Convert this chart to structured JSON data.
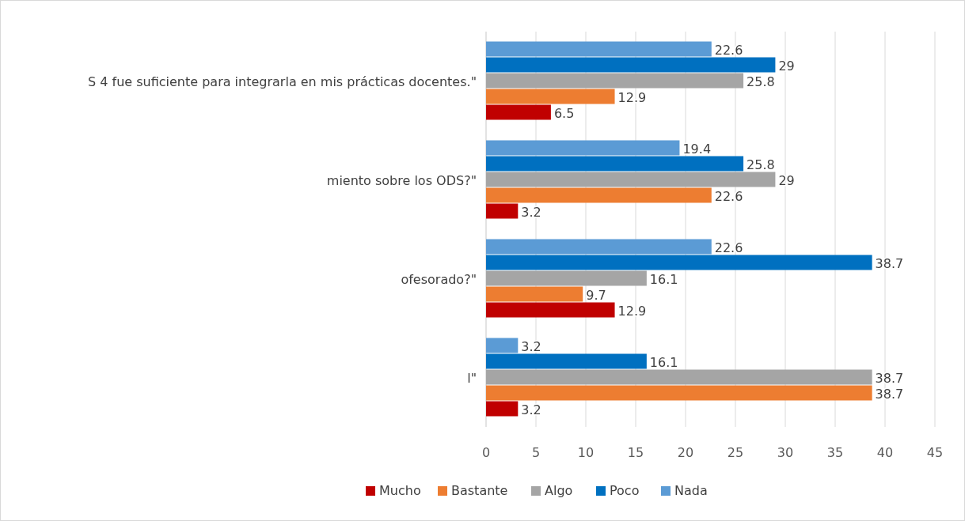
{
  "chart_data": {
    "type": "bar",
    "orientation": "horizontal",
    "categories": [
      "S 4 fue suficiente para integrarla en mis prácticas docentes.\"",
      "miento sobre los ODS?\"",
      "ofesorado?\"",
      "l\""
    ],
    "series": [
      {
        "name": "Mucho",
        "color": "#c00000",
        "values": [
          6.5,
          3.2,
          12.9,
          3.2
        ]
      },
      {
        "name": "Bastante",
        "color": "#ed7d31",
        "values": [
          12.9,
          22.6,
          9.7,
          38.7
        ]
      },
      {
        "name": "Algo",
        "color": "#a5a5a5",
        "values": [
          25.8,
          29,
          16.1,
          38.7
        ]
      },
      {
        "name": "Poco",
        "color": "#0070c0",
        "values": [
          29,
          25.8,
          38.7,
          16.1
        ]
      },
      {
        "name": "Nada",
        "color": "#5b9bd5",
        "values": [
          22.6,
          19.4,
          22.6,
          3.2
        ]
      }
    ],
    "xlim": [
      0,
      45
    ],
    "xticks": [
      0,
      5,
      10,
      15,
      20,
      25,
      30,
      35,
      40,
      45
    ],
    "grid": "x",
    "legend": "bottom",
    "data_labels": true
  }
}
